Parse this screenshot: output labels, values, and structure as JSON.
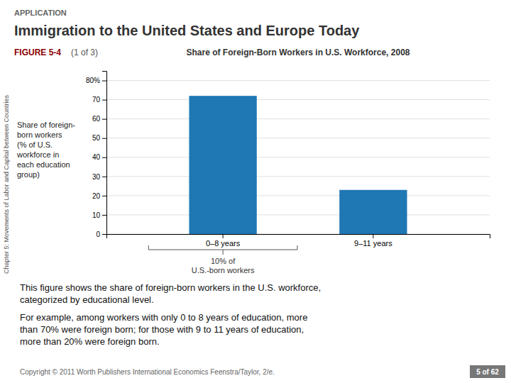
{
  "chart_data": {
    "type": "bar",
    "title": "Immigration to the United States and Europe Today",
    "subtitle": "Share of Foreign-Born Workers in U.S. Workforce, 2008",
    "ylabel": "Share of foreign-\nborn workers\n(% of U.S.\nworkforce in\neach education\ngroup)",
    "categories": [
      "0–8 years",
      "9–11 years"
    ],
    "values": [
      72,
      23
    ],
    "color": "#1f77b4",
    "ylim": [
      0,
      85
    ],
    "yticks": [
      0,
      10,
      20,
      30,
      40,
      50,
      60,
      70,
      {
        "value": 80,
        "label": "80%"
      }
    ],
    "grid": true,
    "annotations": [
      "APPLICATION",
      "FIGURE 5-4",
      "(1 of 3)",
      "10% of",
      "U.S.-born workers",
      "This figure shows the share of foreign-born workers in the U.S. workforce,\ncategorized by educational level.",
      "For example, among workers with only 0 to 8 years of education, more\nthan 70% were foreign born; for those with 9 to 11 years of education,\nmore than 20% were foreign born.",
      "Chapter 5:  Movements of Labor and Capital between Countries",
      "Copyright © 2011 Worth Publishers  International Economics  Feenstra/Taylor, 2/e.",
      "5 of 62"
    ]
  }
}
